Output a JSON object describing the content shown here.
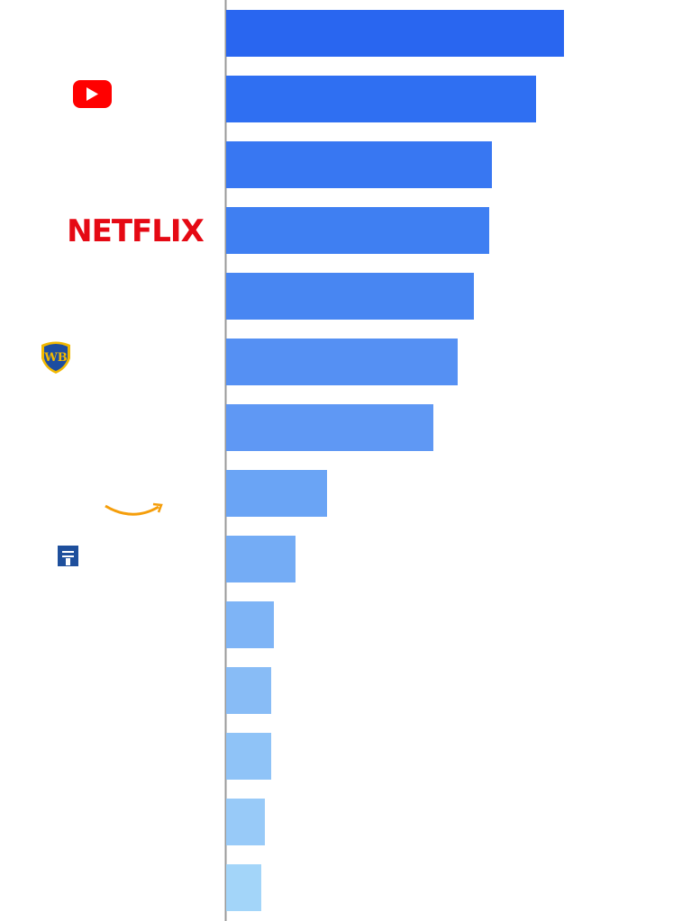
{
  "chart_data": {
    "type": "bar",
    "orientation": "horizontal",
    "categories": [
      null,
      null,
      null,
      "NETFLIX",
      null,
      null,
      null,
      null,
      null,
      null,
      null,
      null,
      null,
      null
    ],
    "values": [
      375,
      344,
      295,
      292,
      275,
      257,
      230,
      112,
      77,
      53,
      50,
      50,
      43,
      39
    ],
    "colors": [
      "#2966f0",
      "#2f6ff2",
      "#3877f2",
      "#3f7ff2",
      "#4886f2",
      "#5590f3",
      "#5f98f4",
      "#6aa4f5",
      "#74acf5",
      "#7eb4f6",
      "#88bcf6",
      "#8fc3f7",
      "#98caf8",
      "#a3d5f9"
    ],
    "xlim": [
      0,
      496
    ]
  }
}
